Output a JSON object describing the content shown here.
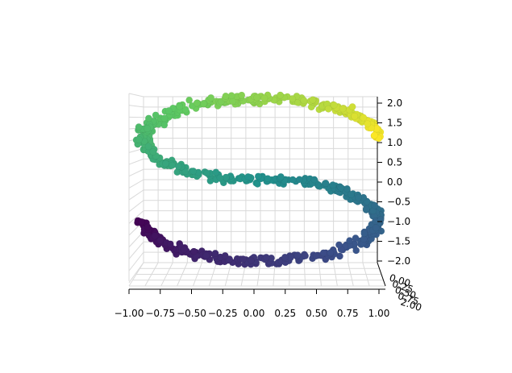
{
  "chart_data": {
    "type": "scatter",
    "projection": "3d",
    "title": "",
    "colormap": "viridis",
    "colormap_stops": [
      "#440154",
      "#3b528b",
      "#21918c",
      "#5ec962",
      "#fde725"
    ],
    "color_by": "position along curve",
    "marker_edge_color": "#000000",
    "x_ticks": [
      "−1.00",
      "−0.75",
      "−0.50",
      "−0.25",
      "0.00",
      "0.25",
      "0.50",
      "0.75",
      "1.00"
    ],
    "z_ticks": [
      "2.0",
      "1.5",
      "1.0",
      "0.5",
      "0.0",
      "−0.5",
      "−1.0",
      "−1.5",
      "−2.0"
    ],
    "y_ticks": [
      "0.00",
      "0.25",
      "0.50",
      "0.75",
      "2.00"
    ],
    "xlim": [
      -1.0,
      1.0
    ],
    "zlim": [
      -2.0,
      2.0
    ],
    "ylim": [
      0.0,
      2.0
    ],
    "grid": true,
    "curve": "S-curve",
    "points_per_series": 250,
    "noise": 0.06,
    "series": [
      {
        "segment": "top arc",
        "x_range": [
          1.0,
          -0.95
        ],
        "z_range": [
          1.0,
          2.0
        ],
        "color": "#3e4a89"
      },
      {
        "segment": "middle",
        "x_range": [
          -0.95,
          0.95
        ],
        "z_range": [
          1.0,
          -1.0
        ],
        "color": "#1f9e89"
      },
      {
        "segment": "bottom arc",
        "x_range": [
          0.95,
          -0.95
        ],
        "z_range": [
          -1.0,
          -2.0
        ],
        "color": "#b5de2b"
      }
    ]
  }
}
